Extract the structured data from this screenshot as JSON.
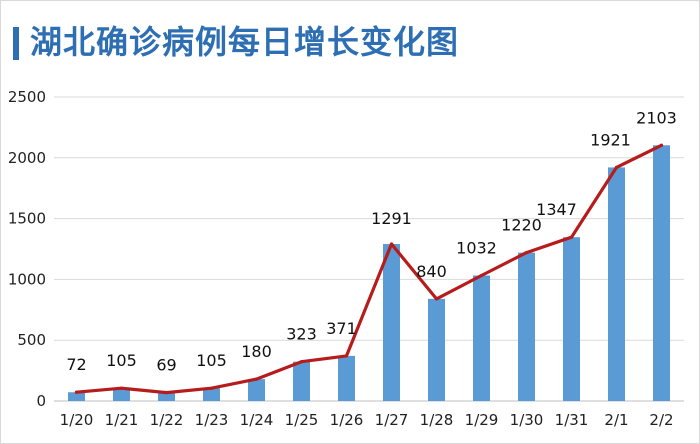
{
  "header": {
    "title": "湖北确诊病例每日增长变化图"
  },
  "chart_data": {
    "type": "bar",
    "title": "湖北确诊病例每日增长变化图",
    "categories": [
      "1/20",
      "1/21",
      "1/22",
      "1/23",
      "1/24",
      "1/25",
      "1/26",
      "1/27",
      "1/28",
      "1/29",
      "1/30",
      "1/31",
      "2/1",
      "2/2"
    ],
    "series": [
      {
        "type": "bar",
        "values": [
          72,
          105,
          69,
          105,
          180,
          323,
          371,
          1291,
          840,
          1032,
          1220,
          1347,
          1921,
          2103
        ]
      },
      {
        "type": "line",
        "values": [
          72,
          105,
          69,
          105,
          180,
          323,
          371,
          1291,
          840,
          1032,
          1220,
          1347,
          1921,
          2103
        ]
      }
    ],
    "data_labels": [
      "72",
      "105",
      "69",
      "105",
      "180",
      "323",
      "371",
      "1291",
      "840",
      "1032",
      "1220",
      "1347",
      "1921",
      "2103"
    ],
    "y_ticks": [
      "0",
      "500",
      "1000",
      "1500",
      "2000",
      "2500"
    ],
    "ylim": [
      0,
      2500
    ],
    "grid": true,
    "legend": "none",
    "colors": {
      "bar": "#5b9bd5",
      "line": "#b71c1c",
      "title": "#2e6fb3",
      "grid": "#d9d9d9"
    }
  }
}
